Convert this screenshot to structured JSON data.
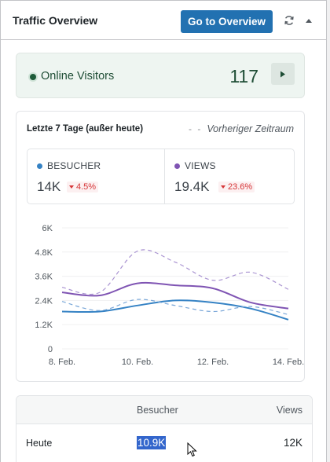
{
  "header": {
    "title": "Traffic Overview",
    "overview_button": "Go to Overview",
    "refresh_icon": "refresh-icon",
    "collapse_icon": "caret-up-icon"
  },
  "online": {
    "label": "Online Visitors",
    "count": "117",
    "play_icon": "play-icon",
    "color": "#1e4d35"
  },
  "stats": {
    "period_label": "Letzte 7 Tage (außer heute)",
    "previous_legend": "Vorheriger Zeitraum",
    "metrics": [
      {
        "name": "BESUCHER",
        "value": "14K",
        "change": "4.5%",
        "direction": "down",
        "color": "#3582c4"
      },
      {
        "name": "VIEWS",
        "value": "19.4K",
        "change": "23.6%",
        "direction": "down",
        "color": "#7f54b3"
      }
    ]
  },
  "chart_data": {
    "type": "line",
    "x": [
      "8. Feb.",
      "9. Feb.",
      "10. Feb.",
      "11. Feb.",
      "12. Feb.",
      "13. Feb.",
      "14. Feb."
    ],
    "x_tick_labels": [
      "8. Feb.",
      "10. Feb.",
      "12. Feb.",
      "14. Feb."
    ],
    "y_ticks": [
      "0",
      "1.2K",
      "2.4K",
      "3.6K",
      "4.8K",
      "6K"
    ],
    "ylim": [
      0,
      6000
    ],
    "series": [
      {
        "name": "BESUCHER",
        "style": "solid",
        "color": "#3582c4",
        "values": [
          1850,
          1850,
          2150,
          2400,
          2300,
          2000,
          1450
        ]
      },
      {
        "name": "VIEWS",
        "style": "solid",
        "color": "#7f54b3",
        "values": [
          2800,
          2650,
          3250,
          3150,
          3000,
          2300,
          2000
        ]
      },
      {
        "name": "BESUCHER",
        "style": "dashed",
        "color": "#7aa7d8",
        "values": [
          2350,
          1900,
          2450,
          2150,
          1850,
          2100,
          1700
        ]
      },
      {
        "name": "VIEWS",
        "style": "dashed",
        "color": "#a993d1",
        "values": [
          3050,
          2800,
          4850,
          4300,
          3400,
          3800,
          2950
        ]
      }
    ],
    "grid": true
  },
  "table": {
    "headers": [
      "",
      "Besucher",
      "Views"
    ],
    "rows": [
      {
        "label": "Heute",
        "besucher": "10.9K",
        "views": "12K"
      }
    ]
  }
}
